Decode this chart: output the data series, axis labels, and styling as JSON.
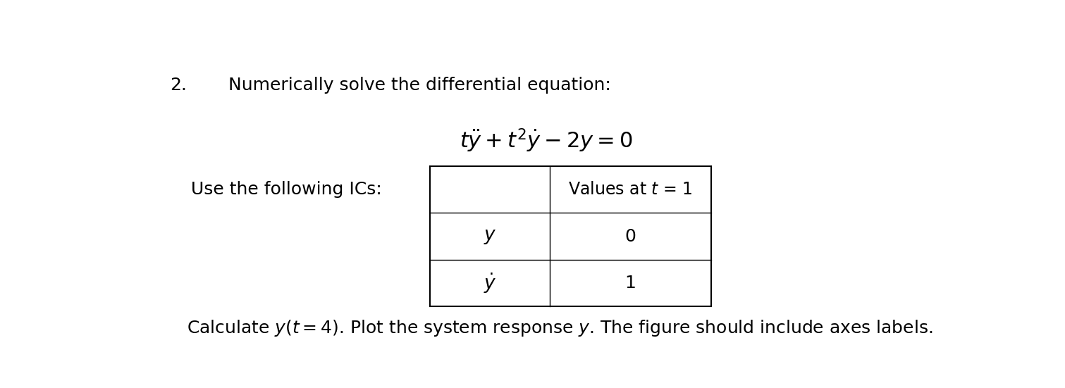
{
  "background_color": "#ffffff",
  "fig_width": 15.11,
  "fig_height": 5.51,
  "number_text": "2.",
  "header_text": "Numerically solve the differential equation:",
  "ic_label": "Use the following ICs:",
  "table_header": "Values at t = 1",
  "table_row1_value": "0",
  "table_row2_value": "1",
  "footer_text": "Calculate y(t = 4). Plot the system response y. The figure should include axes labels.",
  "font_size_header": 18,
  "font_size_equation": 22,
  "font_size_table": 18,
  "font_size_footer": 18,
  "tl": 0.36,
  "tr": 0.7,
  "tt": 0.6,
  "tb": 0.13,
  "col_mid": 0.505,
  "lw_outer": 1.5,
  "lw_inner": 1.0
}
